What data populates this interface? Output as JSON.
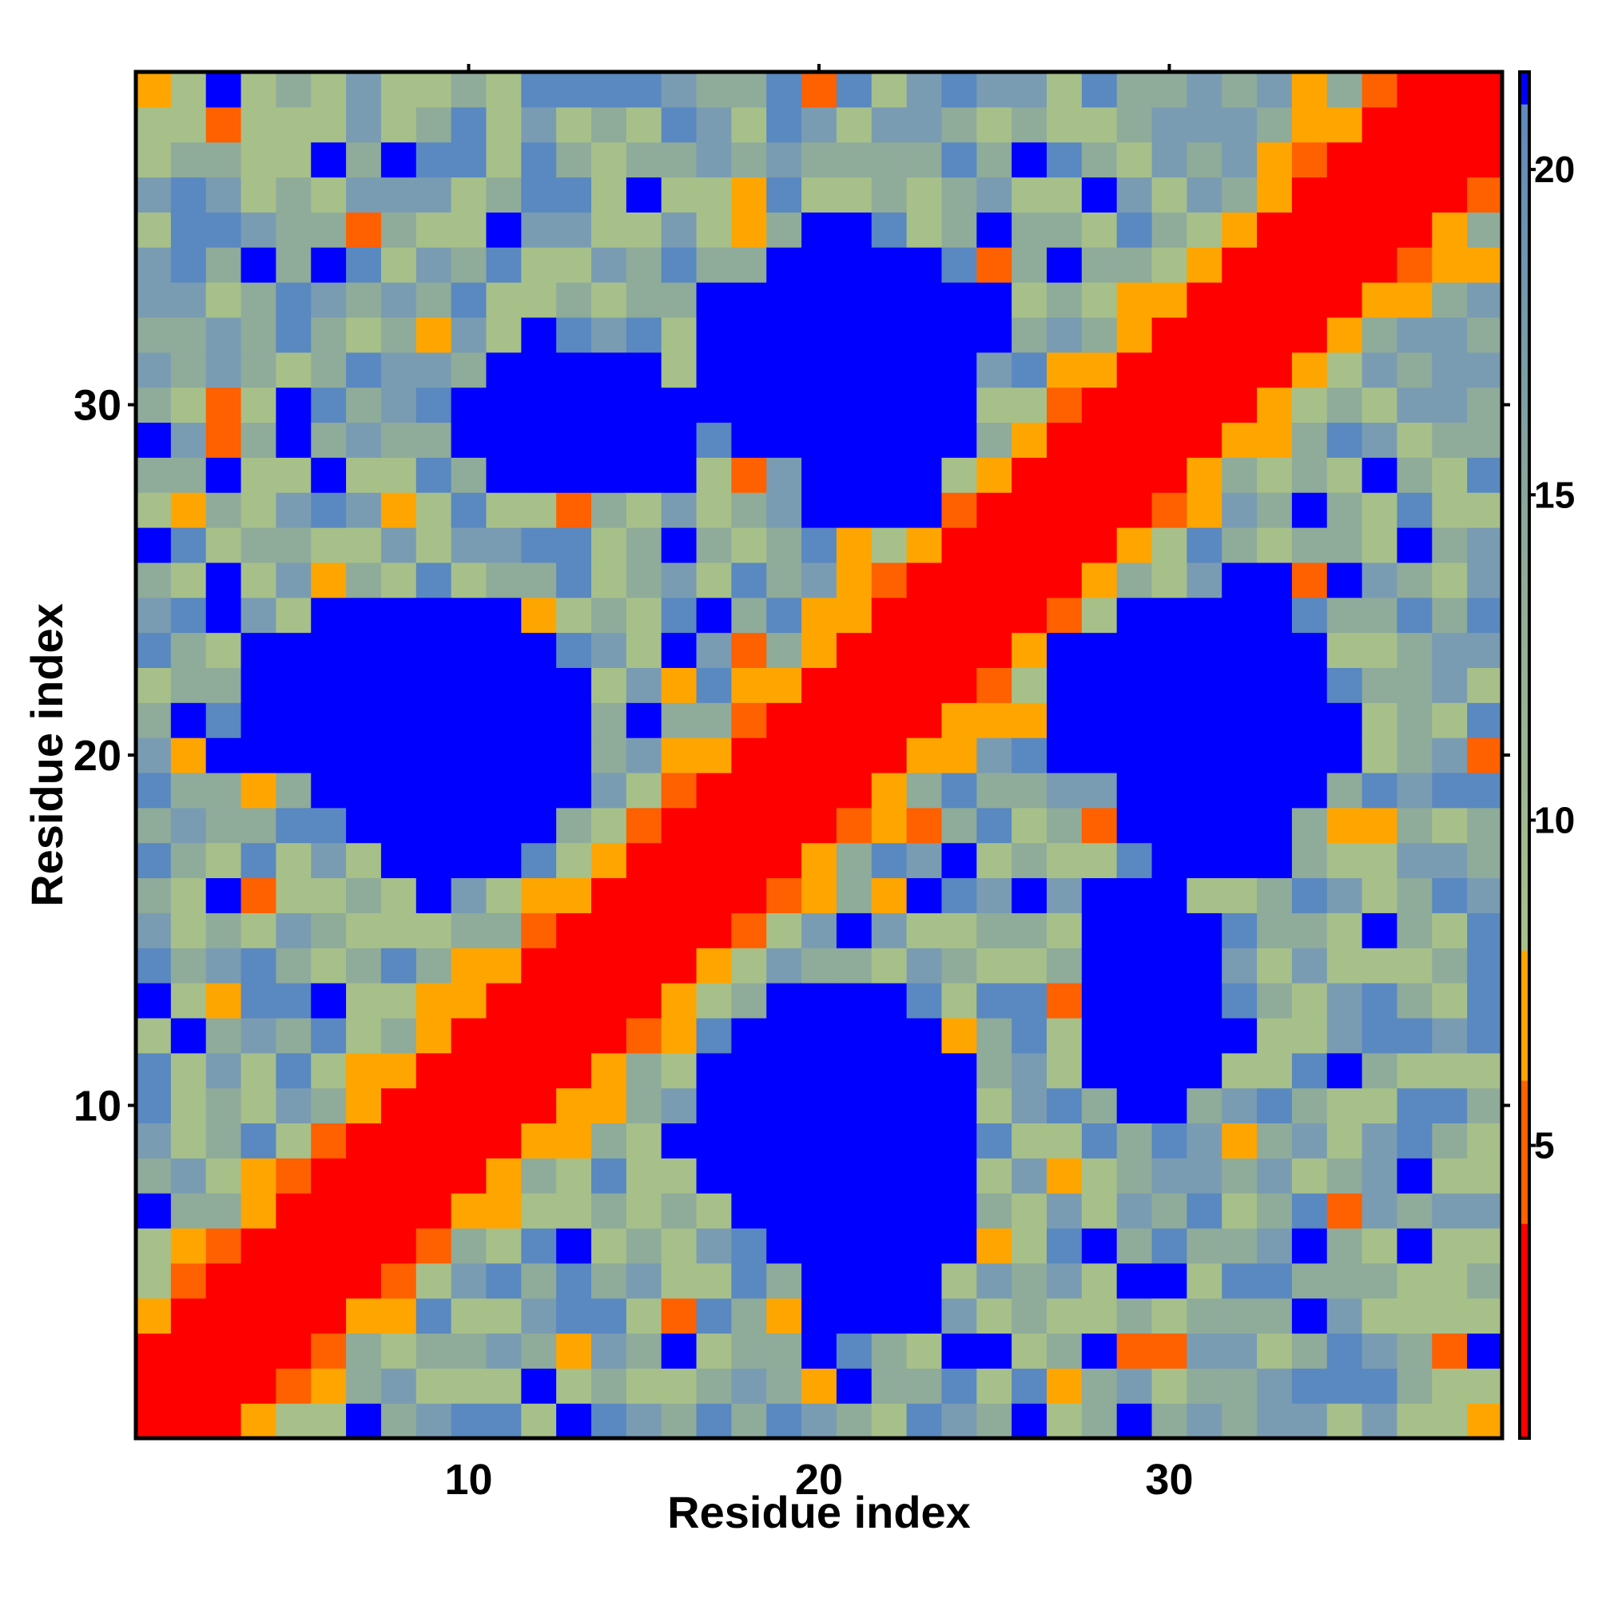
{
  "chart_data": {
    "type": "heatmap",
    "title": "",
    "xlabel": "Residue index",
    "ylabel": "Residue index",
    "n_residues": 39,
    "x_ticks": [
      10,
      20,
      30
    ],
    "y_ticks": [
      10,
      20,
      30
    ],
    "x_tick_labels": [
      "10",
      "20",
      "30"
    ],
    "y_tick_labels": [
      "10",
      "20",
      "30"
    ],
    "colorbar": {
      "range": [
        0.5,
        21.5
      ],
      "ticks": [
        5,
        10,
        15,
        20
      ],
      "tick_labels": [
        "5",
        "10",
        "15",
        "20"
      ],
      "colors": [
        {
          "from": 0.5,
          "to": 3.8,
          "color": "#ff0000"
        },
        {
          "from": 3.8,
          "to": 6.0,
          "color": "#ff6000"
        },
        {
          "from": 6.0,
          "to": 8.0,
          "color": "#ffa500"
        },
        {
          "from": 8.0,
          "to": 21.5,
          "gradient": [
            "#a7c08a",
            "#8aa89a",
            "#5a88c0"
          ]
        }
      ],
      "cutoff_color": "#0000ff",
      "cutoff_value": 21.0
    },
    "colormap": {
      "red": "#ff0000",
      "orange_red": "#ff6000",
      "orange": "#ffa500",
      "light_green": "#a7c08a",
      "gray_green": "#8fab9a",
      "gray_blue": "#7a9cb2",
      "steel_blue": "#5a88c0",
      "blue": "#0000ff"
    },
    "contact_clusters": [
      {
        "x_range": [
          19,
          24
        ],
        "y_range": [
          4,
          12
        ]
      },
      {
        "x_range": [
          19,
          24
        ],
        "y_range": [
          27,
          34
        ]
      },
      {
        "x_range": [
          6,
          13
        ],
        "y_range": [
          17,
          24
        ]
      },
      {
        "x_range": [
          29,
          34
        ],
        "y_range": [
          17,
          24
        ]
      },
      {
        "x_range": [
          28,
          31
        ],
        "y_range": [
          10,
          16
        ]
      }
    ]
  }
}
